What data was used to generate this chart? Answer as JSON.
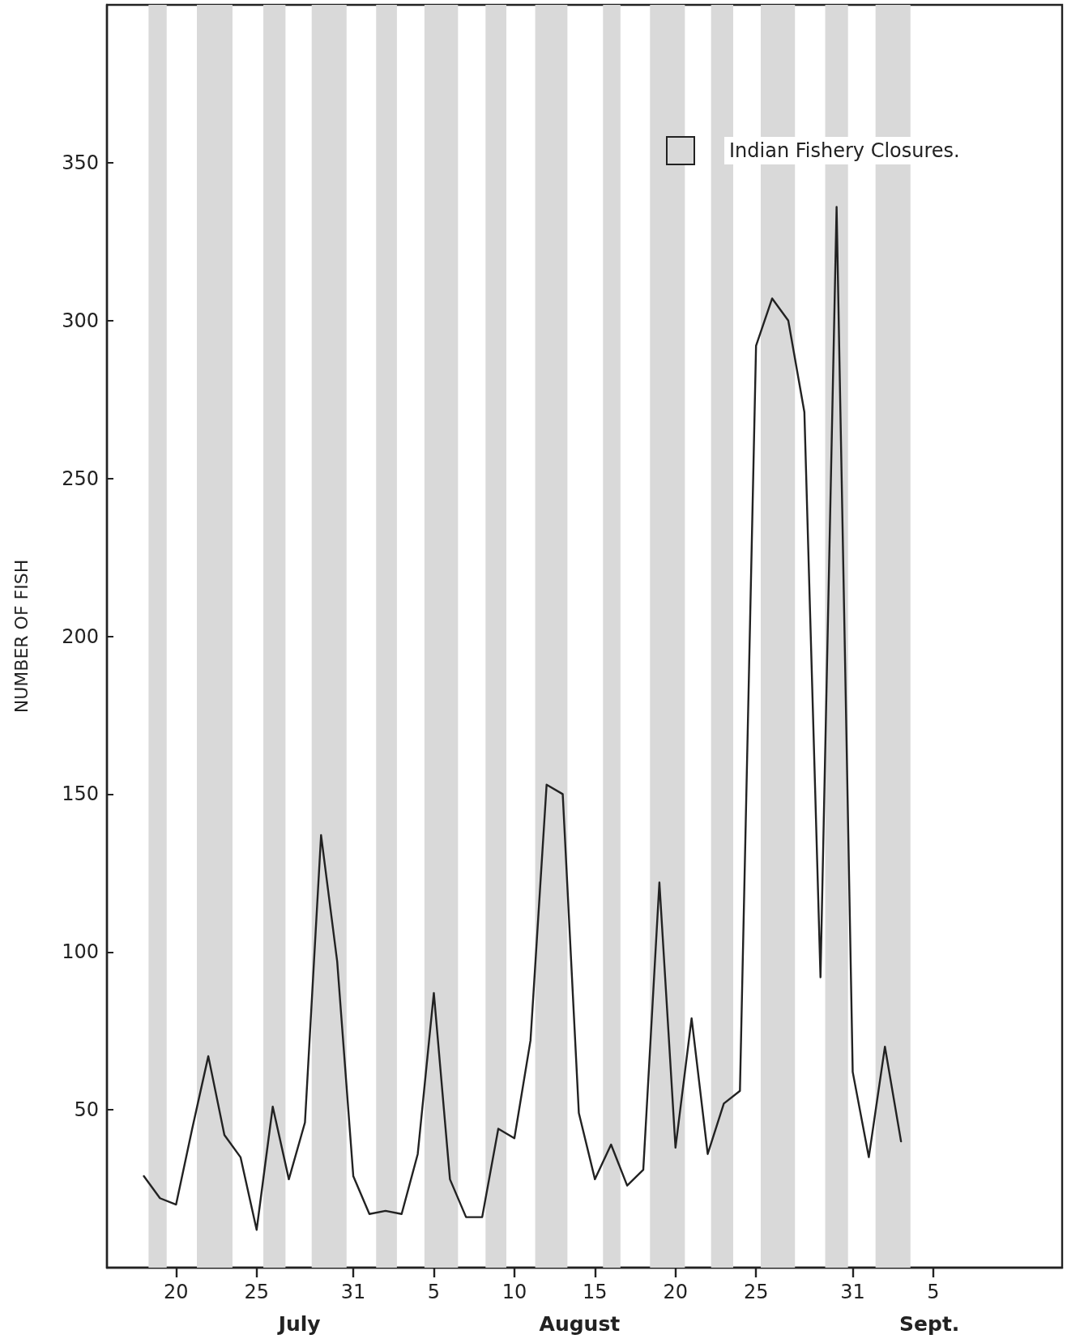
{
  "chart_data": {
    "type": "line",
    "ylabel": "NUMBER OF FISH",
    "x": [
      "--07-18",
      "--07-19",
      "--07-20",
      "--07-21",
      "--07-22",
      "--07-23",
      "--07-24",
      "--07-25",
      "--07-26",
      "--07-27",
      "--07-28",
      "--07-29",
      "--07-30",
      "--07-31",
      "--08-01",
      "--08-02",
      "--08-03",
      "--08-04",
      "--08-05",
      "--08-06",
      "--08-07",
      "--08-08",
      "--08-09",
      "--08-10",
      "--08-11",
      "--08-12",
      "--08-13",
      "--08-14",
      "--08-15",
      "--08-16",
      "--08-17",
      "--08-18",
      "--08-19",
      "--08-20",
      "--08-21",
      "--08-22",
      "--08-23",
      "--08-24",
      "--08-25",
      "--08-26",
      "--08-27",
      "--08-28",
      "--08-29",
      "--08-30",
      "--08-31",
      "--09-01",
      "--09-02",
      "--09-03"
    ],
    "series": [
      {
        "color": "#222222",
        "values": [
          29,
          22,
          20,
          44,
          67,
          42,
          35,
          12,
          51,
          28,
          46,
          137,
          97,
          29,
          17,
          18,
          17,
          36,
          87,
          28,
          16,
          16,
          44,
          41,
          72,
          153,
          150,
          49,
          28,
          39,
          26,
          31,
          122,
          38,
          79,
          36,
          52,
          56,
          292,
          307,
          300,
          271,
          92,
          336,
          62,
          35,
          70,
          40
        ]
      }
    ],
    "xlim": [
      "--07-15T17:00",
      "--09-13T00:00"
    ],
    "xticks": [
      {
        "value": "--07-20",
        "label": "20"
      },
      {
        "value": "--07-25",
        "label": "25"
      },
      {
        "value": "--07-31",
        "label": "31"
      },
      {
        "value": "--08-05",
        "label": "5"
      },
      {
        "value": "--08-10",
        "label": "10"
      },
      {
        "value": "--08-15",
        "label": "15"
      },
      {
        "value": "--08-20",
        "label": "20"
      },
      {
        "value": "--08-25",
        "label": "25"
      },
      {
        "value": "--08-31",
        "label": "31"
      },
      {
        "value": "--09-05",
        "label": "5"
      }
    ],
    "ylim": [
      0,
      400
    ],
    "yticks": [
      50,
      100,
      150,
      200,
      250,
      300,
      350
    ],
    "grid": false,
    "marker": "none",
    "line_style": "solid",
    "bands": [
      {
        "axis": "x",
        "from": "--07-18T07:00",
        "to": "--07-19T10:00",
        "color": "#d9d9d9"
      },
      {
        "axis": "x",
        "from": "--07-21T07:00",
        "to": "--07-23T12:00",
        "color": "#d9d9d9"
      },
      {
        "axis": "x",
        "from": "--07-25T10:00",
        "to": "--07-26T19:00",
        "color": "#d9d9d9"
      },
      {
        "axis": "x",
        "from": "--07-28T10:00",
        "to": "--07-30T14:00",
        "color": "#d9d9d9"
      },
      {
        "axis": "x",
        "from": "--08-01T10:00",
        "to": "--08-02T17:00",
        "color": "#d9d9d9"
      },
      {
        "axis": "x",
        "from": "--08-04T10:00",
        "to": "--08-06T12:00",
        "color": "#d9d9d9"
      },
      {
        "axis": "x",
        "from": "--08-08T05:00",
        "to": "--08-09T12:00",
        "color": "#d9d9d9"
      },
      {
        "axis": "x",
        "from": "--08-11T07:00",
        "to": "--08-13T07:00",
        "color": "#d9d9d9"
      },
      {
        "axis": "x",
        "from": "--08-15T12:00",
        "to": "--08-16T14:00",
        "color": "#d9d9d9"
      },
      {
        "axis": "x",
        "from": "--08-18T10:00",
        "to": "--08-20T14:00",
        "color": "#d9d9d9"
      },
      {
        "axis": "x",
        "from": "--08-22T05:00",
        "to": "--08-23T14:00",
        "color": "#d9d9d9"
      },
      {
        "axis": "x",
        "from": "--08-25T07:00",
        "to": "--08-27T10:00",
        "color": "#d9d9d9"
      },
      {
        "axis": "x",
        "from": "--08-29T07:00",
        "to": "--08-30T17:00",
        "color": "#d9d9d9"
      },
      {
        "axis": "x",
        "from": "--09-01T10:00",
        "to": "--09-03T14:00",
        "color": "#d9d9d9"
      }
    ],
    "annotations": [
      "Indian Fishery Closures.",
      "July",
      "August",
      "Sept."
    ]
  }
}
